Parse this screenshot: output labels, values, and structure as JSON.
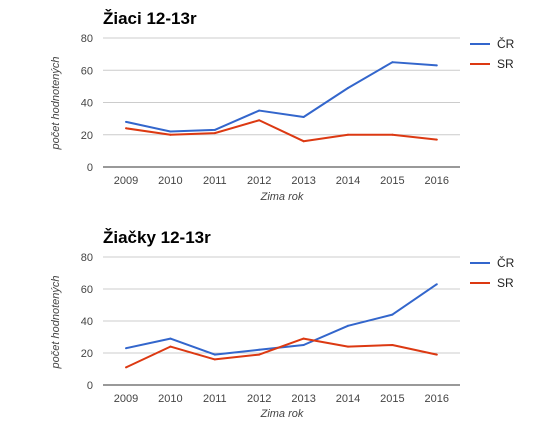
{
  "chart_data": [
    {
      "type": "line",
      "title": "Žiaci 12-13r",
      "xlabel": "Zima rok",
      "ylabel": "počet hodnotených",
      "x": [
        "2009",
        "2010",
        "2011",
        "2012",
        "2013",
        "2014",
        "2015",
        "2016"
      ],
      "ylim": [
        0,
        80
      ],
      "yticks": [
        0,
        20,
        40,
        60,
        80
      ],
      "grid": true,
      "legend": "right",
      "series": [
        {
          "name": "ČR",
          "color": "#3366cc",
          "values": [
            28,
            22,
            23,
            35,
            31,
            49,
            65,
            63
          ]
        },
        {
          "name": "SR",
          "color": "#dc3912",
          "values": [
            24,
            20,
            21,
            29,
            16,
            20,
            20,
            17
          ]
        }
      ]
    },
    {
      "type": "line",
      "title": "Žiačky 12-13r",
      "xlabel": "Zima rok",
      "ylabel": "počet hodnotených",
      "x": [
        "2009",
        "2010",
        "2011",
        "2012",
        "2013",
        "2014",
        "2015",
        "2016"
      ],
      "ylim": [
        0,
        80
      ],
      "yticks": [
        0,
        20,
        40,
        60,
        80
      ],
      "grid": true,
      "legend": "right",
      "series": [
        {
          "name": "ČR",
          "color": "#3366cc",
          "values": [
            23,
            29,
            19,
            22,
            25,
            37,
            44,
            63
          ]
        },
        {
          "name": "SR",
          "color": "#dc3912",
          "values": [
            11,
            24,
            16,
            19,
            29,
            24,
            25,
            19
          ]
        }
      ]
    }
  ]
}
